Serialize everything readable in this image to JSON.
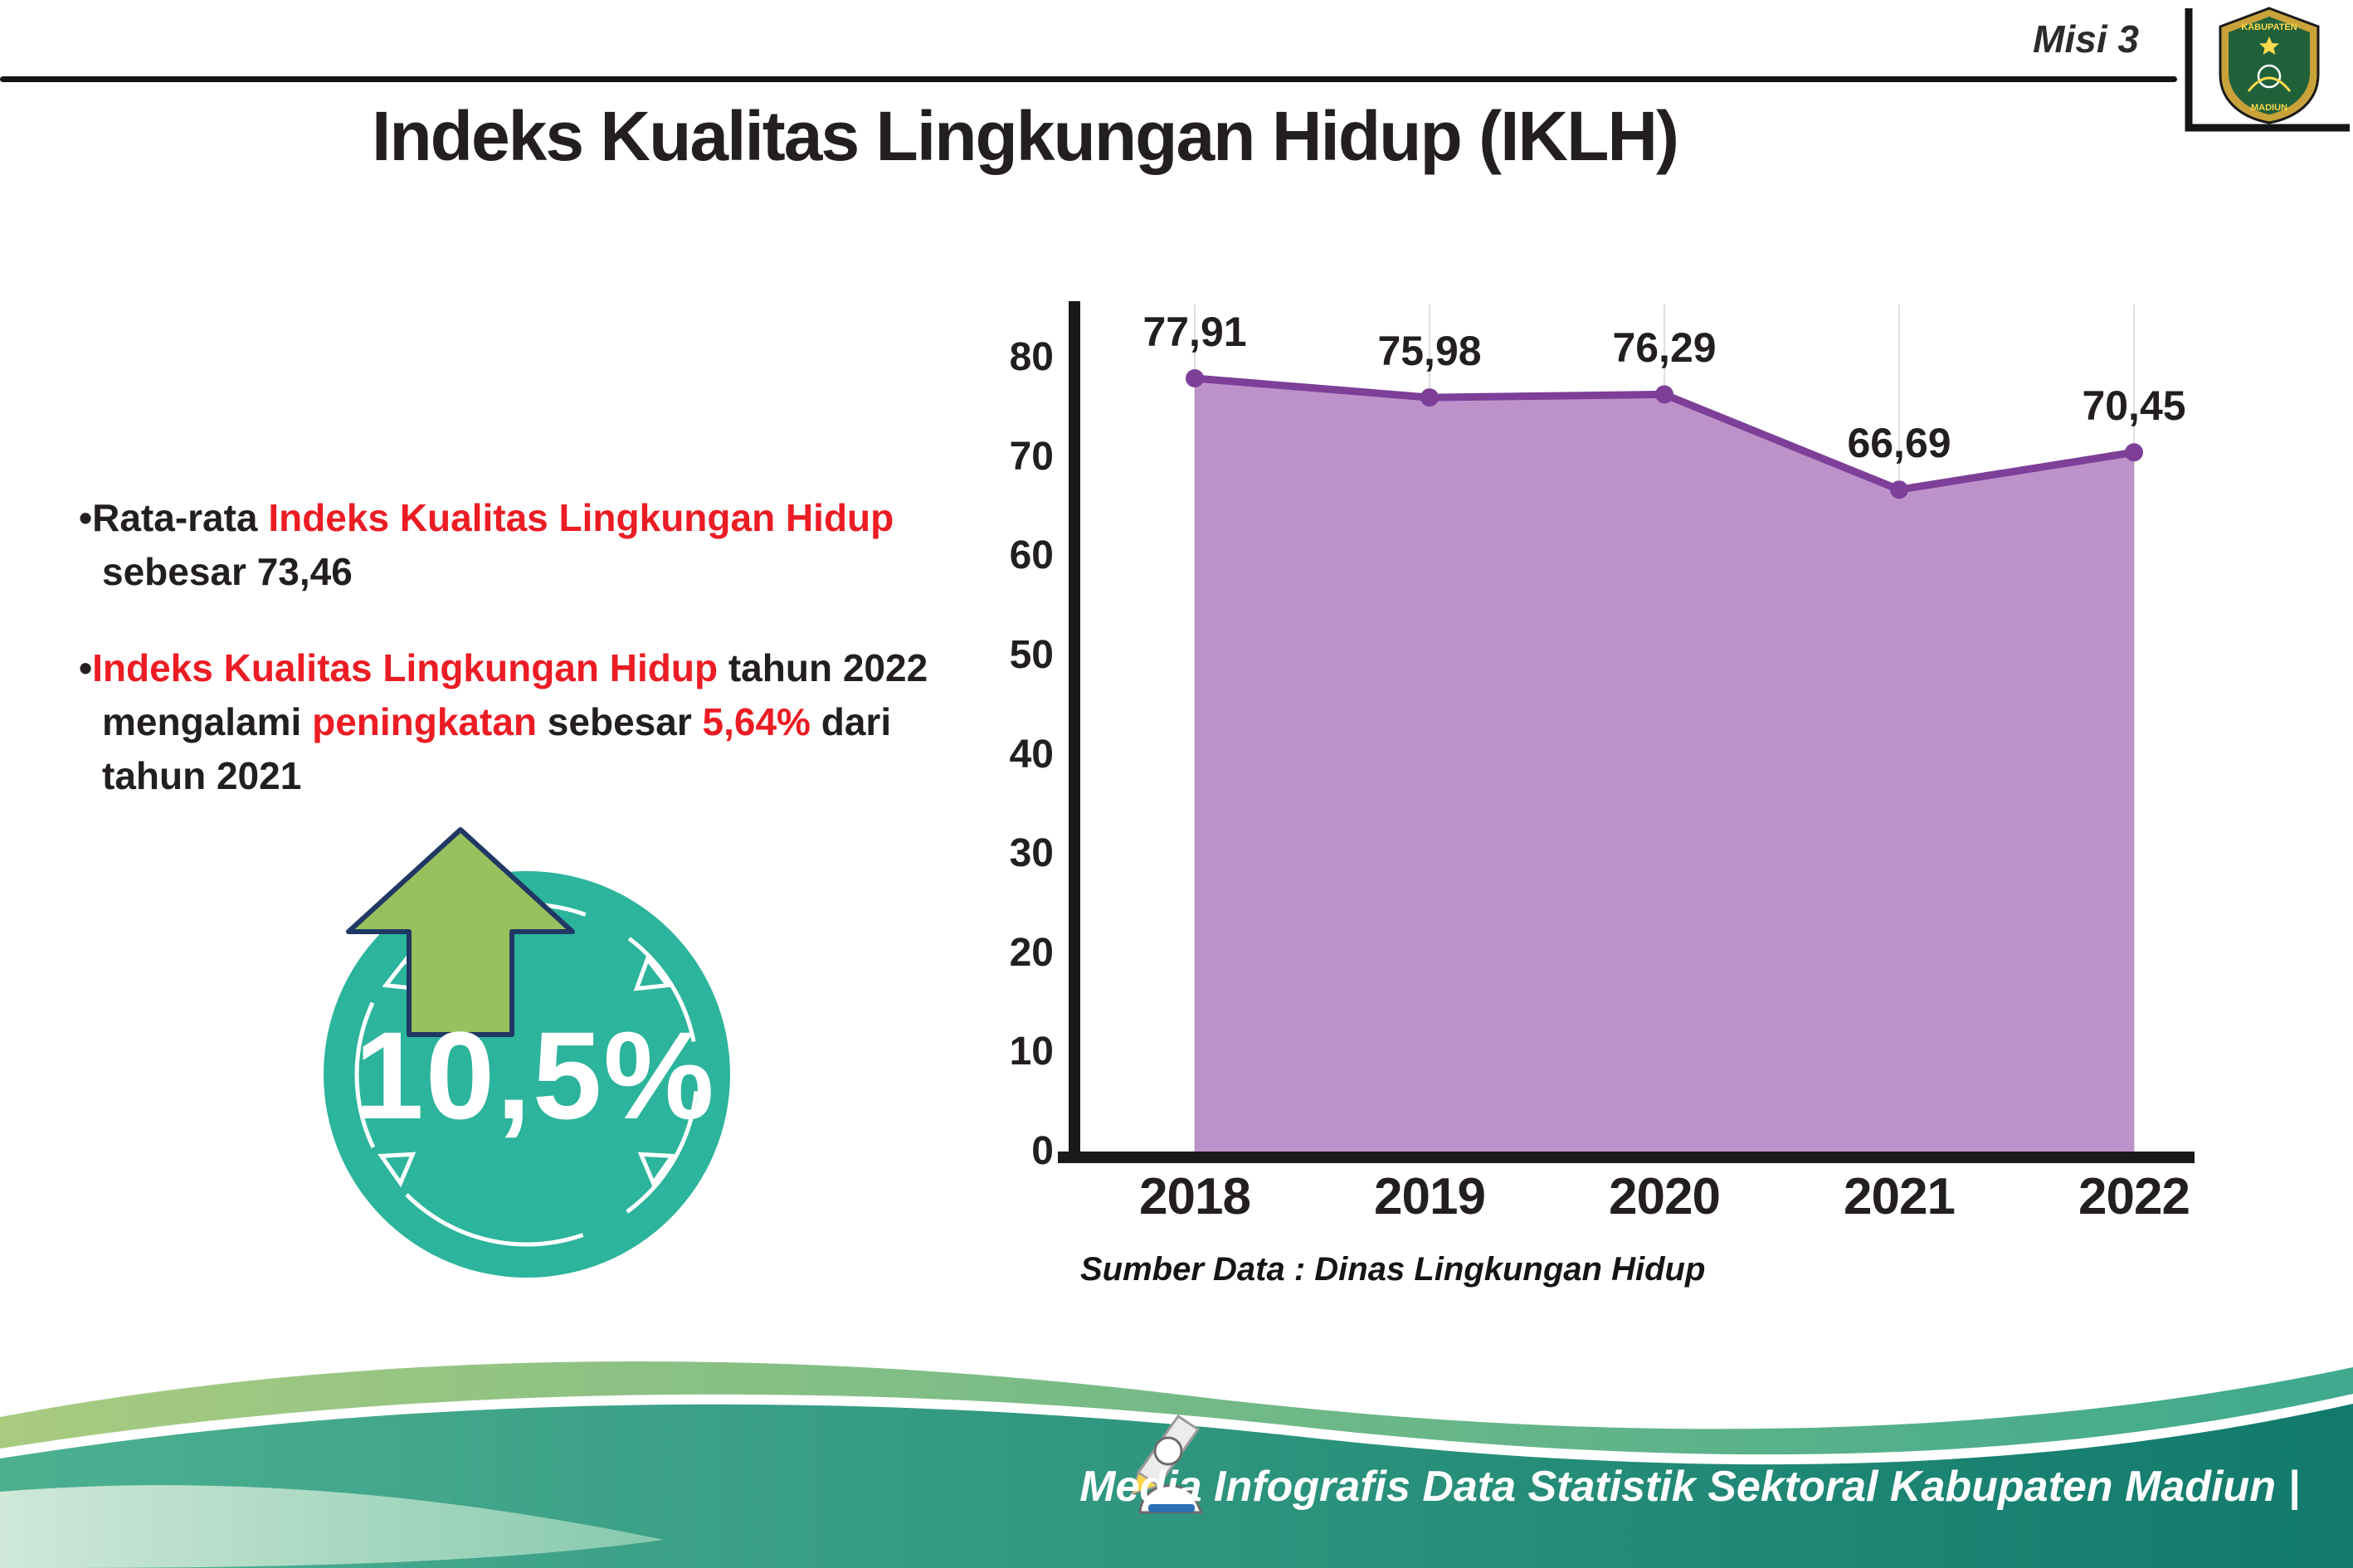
{
  "page": {
    "misi_label": "Misi 3",
    "title": "Indeks Kualitas Lingkungan Hidup (IKLH)",
    "footer_text": "Media Infografis Data Statistik Sektoral Kabupaten Madiun |"
  },
  "logo": {
    "top_text": "KABUPATEN",
    "bottom_text": "MADIUN"
  },
  "badge": {
    "value": "10,5%"
  },
  "bullets": [
    {
      "segments": [
        {
          "text": "Rata-rata ",
          "color": "black"
        },
        {
          "text": "Indeks Kualitas Lingkungan Hidup",
          "color": "red"
        },
        {
          "text": " sebesar 73,46",
          "color": "black"
        }
      ]
    },
    {
      "segments": [
        {
          "text": "Indeks Kualitas Lingkungan Hidup",
          "color": "red"
        },
        {
          "text": " tahun 2022 mengalami ",
          "color": "black"
        },
        {
          "text": "peningkatan",
          "color": "red"
        },
        {
          "text": " sebesar ",
          "color": "black"
        },
        {
          "text": "5,64%",
          "color": "red"
        },
        {
          "text": " dari tahun 2021",
          "color": "black"
        }
      ]
    }
  ],
  "colors": {
    "red": "#ec1c24",
    "purple_fill": "#bd92cb",
    "purple_line": "#7d3f98",
    "teal_badge": "#2cb49c",
    "arrow_green": "#97c15c",
    "axis_black": "#1a1a1a",
    "footer_teal": "#1d8a78",
    "footer_green": "#7cbf6e"
  },
  "chart_data": {
    "type": "area",
    "title": "Indeks Kualitas Lingkungan Hidup (IKLH)",
    "categories": [
      "2018",
      "2019",
      "2020",
      "2021",
      "2022"
    ],
    "values": [
      77.91,
      75.98,
      76.29,
      66.69,
      70.45
    ],
    "value_labels": [
      "77,91",
      "75,98",
      "76,29",
      "66,69",
      "70,45"
    ],
    "xlabel": "",
    "ylabel": "",
    "ylim": [
      0,
      80
    ],
    "yticks": [
      0,
      10,
      20,
      30,
      40,
      50,
      60,
      70,
      80
    ],
    "grid": "vertical-light",
    "legend": "none",
    "source_note": "Sumber Data : Dinas Lingkungan Hidup"
  }
}
